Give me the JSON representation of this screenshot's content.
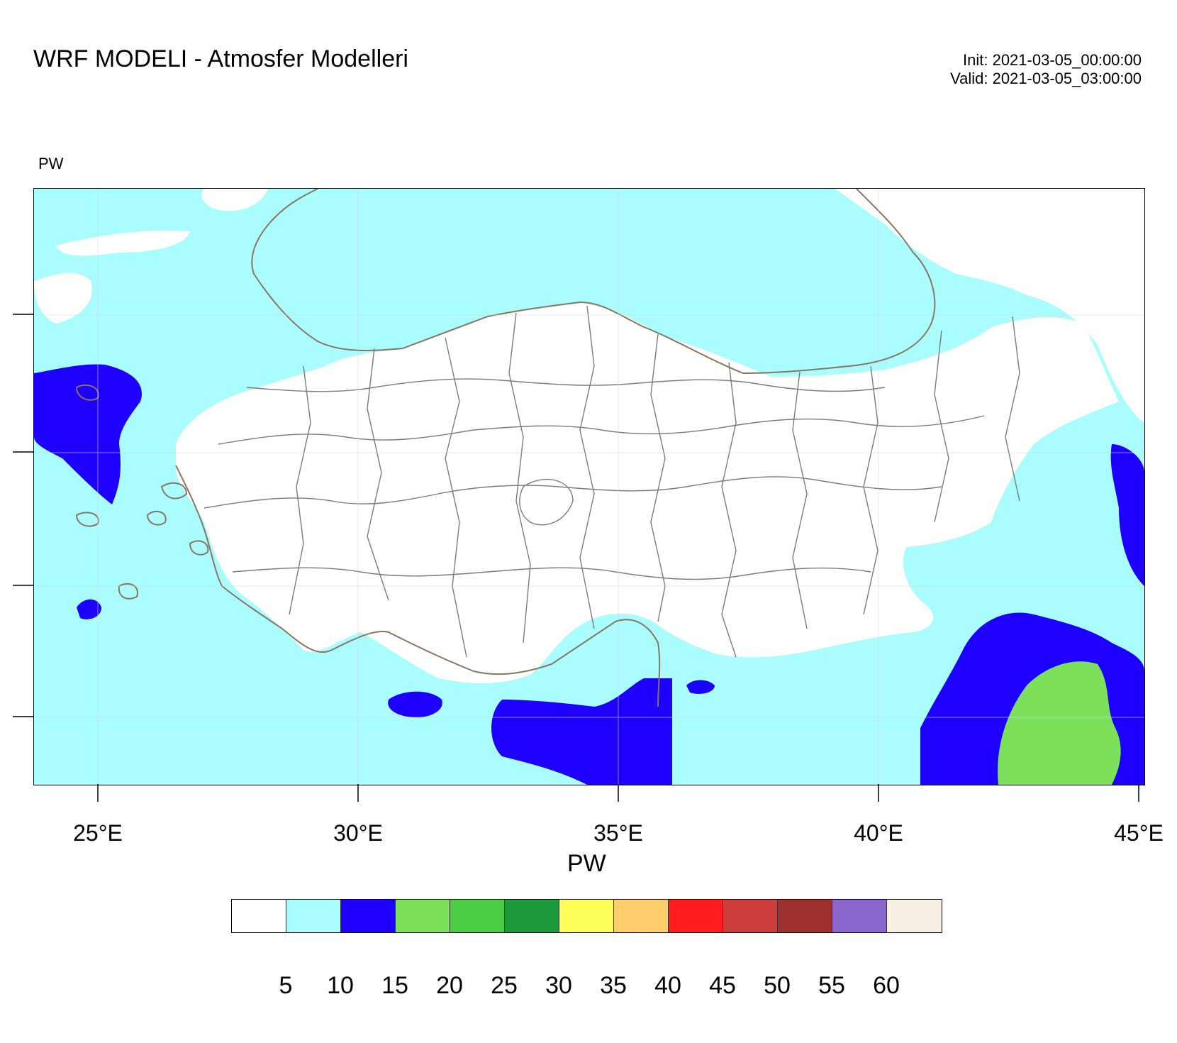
{
  "title": "WRF MODELI - Atmosfer Modelleri",
  "init_time": "Init: 2021-03-05_00:00:00",
  "valid_time": "Valid: 2021-03-05_03:00:00",
  "field_label": "PW",
  "map": {
    "xaxis_ticks": [
      "25°E",
      "30°E",
      "35°E",
      "40°E",
      "45°E"
    ],
    "colors": {
      "background_fill": "#a9fdfe",
      "low_values": "#ffffff",
      "mid_values": "#1e00ff",
      "high_values": "#7be05a",
      "coastline": "#8b7560",
      "province_border": "#7a7a7a"
    }
  },
  "colorbar": {
    "title": "PW",
    "labels": [
      "5",
      "10",
      "15",
      "20",
      "25",
      "30",
      "35",
      "40",
      "45",
      "50",
      "55",
      "60"
    ],
    "colors": [
      "#ffffff",
      "#a9fdfe",
      "#1e00ff",
      "#7be05a",
      "#4bcc45",
      "#1d9a3b",
      "#fffd5a",
      "#ffcd6b",
      "#ff1c1c",
      "#cd3d3d",
      "#a02f2f",
      "#8a66cc",
      "#f8efe4"
    ]
  }
}
